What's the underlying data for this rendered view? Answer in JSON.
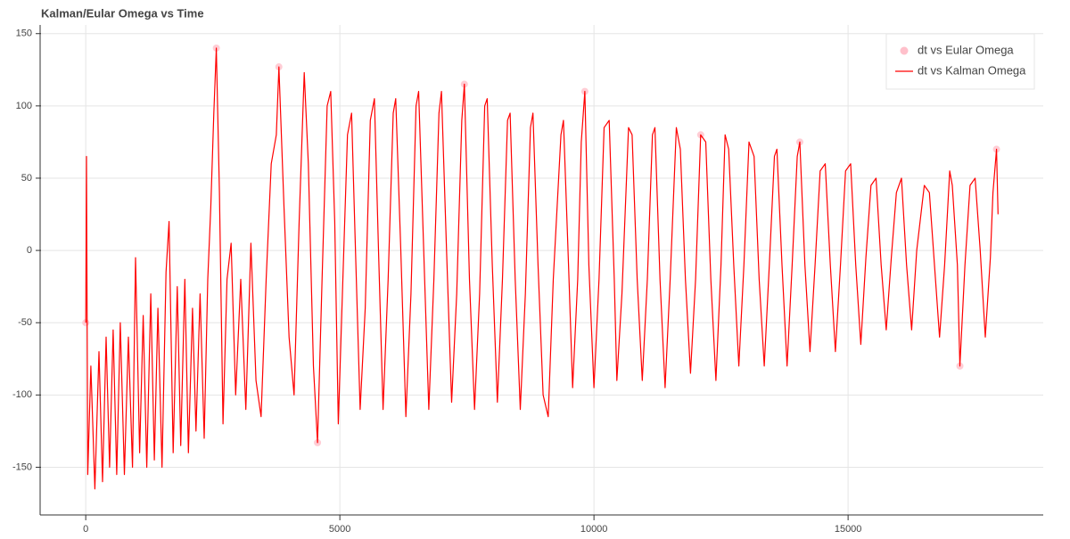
{
  "chart_data": {
    "type": "line",
    "title": "Kalman/Eular Omega vs Time",
    "xlim": [
      -880,
      18840
    ],
    "ylim": [
      -183,
      156
    ],
    "xticks": [
      0,
      5000,
      10000,
      15000
    ],
    "yticks": [
      -150,
      -100,
      -50,
      0,
      50,
      100,
      150
    ],
    "grid": true,
    "legend": "top-right",
    "series": [
      {
        "name": "dt vs Eular Omega",
        "type": "scatter",
        "color": "#ffc0cb",
        "x": [
          0,
          2570,
          3800,
          4560,
          7450,
          9820,
          12100,
          14050,
          17200,
          17920
        ],
        "values": [
          -50,
          140,
          127,
          -133,
          115,
          110,
          80,
          75,
          -80,
          70
        ]
      },
      {
        "name": "dt vs Kalman Omega",
        "type": "line",
        "color": "#ff0000",
        "x": [
          0,
          15,
          40,
          100,
          180,
          260,
          330,
          400,
          470,
          540,
          610,
          680,
          760,
          840,
          920,
          980,
          1060,
          1130,
          1200,
          1280,
          1350,
          1420,
          1500,
          1580,
          1640,
          1720,
          1800,
          1870,
          1950,
          2020,
          2100,
          2170,
          2250,
          2330,
          2400,
          2460,
          2520,
          2570,
          2630,
          2700,
          2780,
          2860,
          2950,
          3050,
          3150,
          3250,
          3350,
          3450,
          3550,
          3650,
          3750,
          3800,
          3900,
          4000,
          4100,
          4200,
          4300,
          4380,
          4480,
          4560,
          4650,
          4750,
          4820,
          4900,
          4970,
          5050,
          5150,
          5230,
          5300,
          5400,
          5500,
          5600,
          5680,
          5760,
          5850,
          5950,
          6050,
          6100,
          6200,
          6300,
          6400,
          6500,
          6550,
          6650,
          6750,
          6850,
          6950,
          7000,
          7100,
          7200,
          7300,
          7400,
          7450,
          7550,
          7650,
          7750,
          7850,
          7900,
          8000,
          8100,
          8200,
          8300,
          8350,
          8450,
          8550,
          8650,
          8750,
          8800,
          8900,
          9000,
          9100,
          9200,
          9350,
          9400,
          9500,
          9580,
          9680,
          9750,
          9820,
          9900,
          10000,
          10100,
          10200,
          10300,
          10400,
          10450,
          10550,
          10680,
          10750,
          10850,
          10950,
          11050,
          11150,
          11200,
          11300,
          11400,
          11500,
          11620,
          11700,
          11800,
          11900,
          12000,
          12100,
          12200,
          12300,
          12400,
          12500,
          12580,
          12650,
          12750,
          12850,
          12950,
          13050,
          13150,
          13250,
          13350,
          13450,
          13550,
          13600,
          13700,
          13800,
          13900,
          14000,
          14050,
          14150,
          14250,
          14350,
          14450,
          14550,
          14650,
          14750,
          14850,
          14950,
          15050,
          15150,
          15250,
          15350,
          15450,
          15550,
          15650,
          15750,
          15850,
          15950,
          16050,
          16150,
          16250,
          16350,
          16500,
          16600,
          16700,
          16800,
          16900,
          17000,
          17050,
          17150,
          17200,
          17300,
          17400,
          17500,
          17600,
          17700,
          17800,
          17850,
          17920,
          17950
        ],
        "values": [
          -50,
          65,
          -155,
          -80,
          -165,
          -70,
          -160,
          -60,
          -150,
          -55,
          -155,
          -50,
          -155,
          -60,
          -150,
          -5,
          -140,
          -45,
          -150,
          -30,
          -145,
          -40,
          -150,
          -15,
          20,
          -140,
          -25,
          -135,
          -20,
          -140,
          -40,
          -125,
          -30,
          -130,
          -20,
          30,
          95,
          140,
          40,
          -120,
          -20,
          5,
          -100,
          -20,
          -110,
          5,
          -90,
          -115,
          -20,
          60,
          80,
          127,
          30,
          -60,
          -100,
          20,
          123,
          60,
          -80,
          -133,
          -20,
          100,
          110,
          20,
          -120,
          -30,
          80,
          95,
          10,
          -110,
          -40,
          90,
          105,
          0,
          -110,
          -20,
          95,
          105,
          0,
          -115,
          -30,
          100,
          110,
          0,
          -110,
          -20,
          95,
          110,
          0,
          -105,
          -30,
          90,
          115,
          -20,
          -110,
          -30,
          100,
          105,
          -10,
          -105,
          -20,
          90,
          95,
          -20,
          -110,
          -30,
          85,
          95,
          -10,
          -100,
          -115,
          -20,
          80,
          90,
          -10,
          -95,
          -20,
          75,
          110,
          -10,
          -95,
          -20,
          85,
          90,
          -20,
          -90,
          -30,
          85,
          80,
          -20,
          -90,
          -20,
          80,
          85,
          -20,
          -95,
          -20,
          85,
          70,
          -20,
          -85,
          -20,
          80,
          75,
          -20,
          -90,
          -10,
          80,
          70,
          -10,
          -80,
          -10,
          75,
          65,
          -20,
          -80,
          -10,
          65,
          70,
          -10,
          -80,
          -10,
          65,
          75,
          -10,
          -70,
          -10,
          55,
          60,
          -10,
          -70,
          -10,
          55,
          60,
          -10,
          -65,
          -5,
          45,
          50,
          -10,
          -55,
          -5,
          40,
          50,
          -10,
          -55,
          0,
          45,
          40,
          -10,
          -60,
          -10,
          55,
          45,
          -10,
          -80,
          -10,
          45,
          50,
          0,
          -60,
          -5,
          40,
          70,
          25
        ]
      }
    ]
  }
}
